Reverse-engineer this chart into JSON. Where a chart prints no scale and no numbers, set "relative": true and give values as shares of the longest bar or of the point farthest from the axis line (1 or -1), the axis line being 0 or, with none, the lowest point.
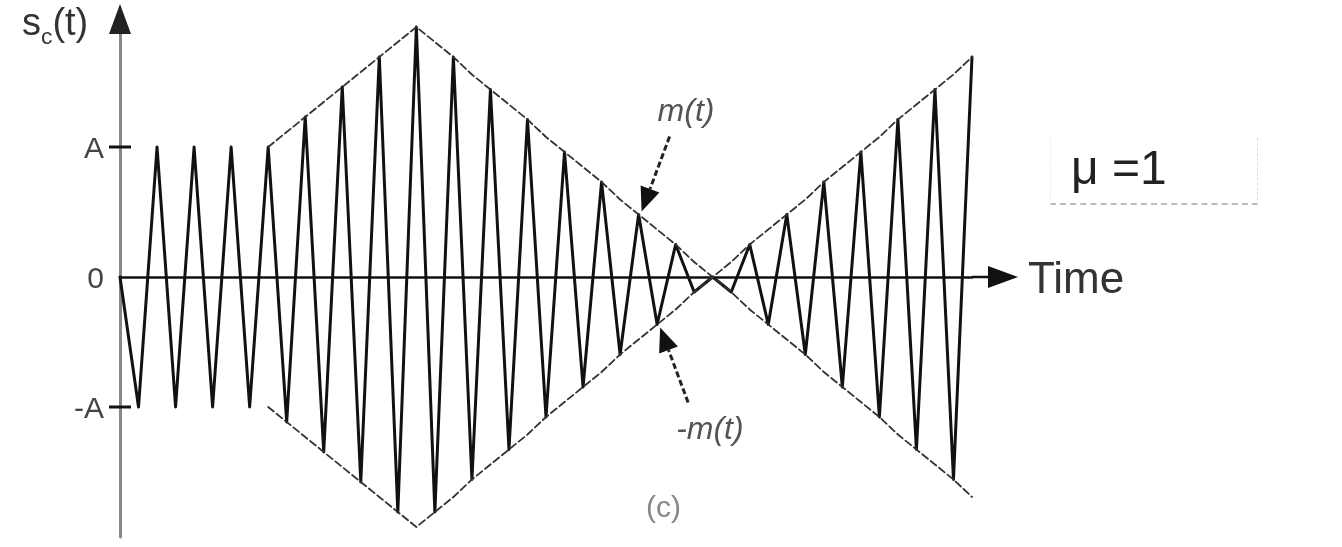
{
  "chart_data": {
    "type": "line",
    "relative": true,
    "xlabel": "Time",
    "ylabel": "s$_{c}$(t)",
    "annotations": [
      "A",
      "0",
      "-A",
      "μ =1",
      "(c)"
    ],
    "categories": [
      null,
      null,
      null,
      null,
      null,
      null,
      null,
      null,
      null,
      null,
      null,
      null,
      null,
      null,
      null,
      null,
      null,
      null,
      null,
      null,
      null,
      null,
      null,
      null,
      null,
      null,
      null,
      null,
      null,
      null,
      null,
      null,
      null,
      null,
      null,
      null,
      null,
      null,
      null,
      null,
      null,
      null,
      null,
      null,
      null,
      null,
      null
    ],
    "series": [
      {
        "color": "#111111",
        "line_style": "solid",
        "values": [
          0,
          -0.52,
          0.52,
          -0.52,
          0.52,
          -0.52,
          0.52,
          -0.52,
          0.52,
          -0.58,
          0.64,
          -0.7,
          0.76,
          -0.82,
          0.88,
          -0.94,
          1,
          -0.94,
          0.88,
          -0.81,
          0.75,
          -0.69,
          0.63,
          -0.56,
          0.5,
          -0.44,
          0.38,
          -0.31,
          0.25,
          -0.19,
          0.13,
          -0.06,
          0,
          -0.06,
          0.13,
          -0.19,
          0.25,
          -0.31,
          0.38,
          -0.44,
          0.5,
          -0.56,
          0.63,
          -0.69,
          0.75,
          -0.81,
          0.88
        ]
      },
      {
        "name": "m(t)",
        "color": "#333333",
        "line_style": "dashed",
        "values": [
          null,
          null,
          null,
          null,
          null,
          null,
          null,
          null,
          0.52,
          0.58,
          0.64,
          0.7,
          0.76,
          0.82,
          0.88,
          0.94,
          1,
          0.94,
          0.88,
          0.81,
          0.75,
          0.69,
          0.63,
          0.56,
          0.5,
          0.44,
          0.38,
          0.31,
          0.25,
          0.19,
          0.13,
          0.06,
          0,
          0.06,
          0.13,
          0.19,
          0.25,
          0.31,
          0.38,
          0.44,
          0.5,
          0.56,
          0.63,
          0.69,
          0.75,
          0.81,
          0.88
        ]
      },
      {
        "name": "-m(t)",
        "color": "#333333",
        "line_style": "dashed",
        "values": [
          null,
          null,
          null,
          null,
          null,
          null,
          null,
          null,
          -0.52,
          -0.58,
          -0.64,
          -0.7,
          -0.76,
          -0.82,
          -0.88,
          -0.94,
          -1,
          -0.94,
          -0.88,
          -0.81,
          -0.75,
          -0.69,
          -0.63,
          -0.56,
          -0.5,
          -0.44,
          -0.38,
          -0.31,
          -0.25,
          -0.19,
          -0.13,
          -0.06,
          0,
          -0.06,
          -0.13,
          -0.19,
          -0.25,
          -0.31,
          -0.38,
          -0.44,
          -0.5,
          -0.56,
          -0.63,
          -0.69,
          -0.75,
          -0.81,
          -0.88
        ]
      }
    ],
    "grid": false,
    "legend": false,
    "marker": "none"
  }
}
